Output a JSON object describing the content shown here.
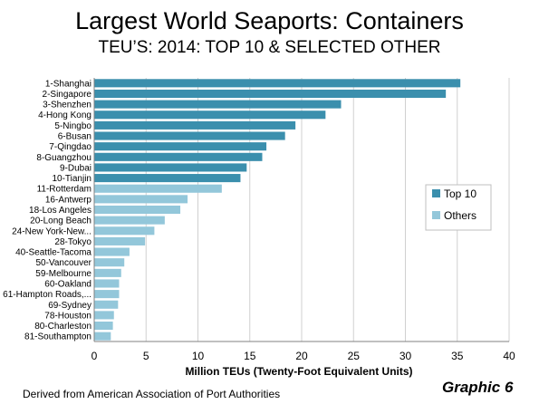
{
  "title": "Largest World Seaports: Containers",
  "subtitle": "TEU’S: 2014: TOP 10 & SELECTED OTHER",
  "footer": {
    "source": "Derived from American Association of Port Authorities",
    "graphic_label": "Graphic 6"
  },
  "colors": {
    "top10": "#3b8fad",
    "others": "#93c7da",
    "grid": "#d0d0d0",
    "axis": "#808080"
  },
  "chart_data": {
    "type": "bar",
    "orientation": "horizontal",
    "title": "Largest World Seaports: Containers",
    "subtitle": "TEU’S: 2014: TOP 10 & SELECTED OTHER",
    "xlabel": "Million TEUs (Twenty-Foot Equivalent Units)",
    "ylabel": "",
    "xlim": [
      0,
      40
    ],
    "xticks": [
      "0",
      "5",
      "10",
      "15",
      "20",
      "25",
      "30",
      "35",
      "40"
    ],
    "grid": true,
    "legend_position": "right",
    "legend": [
      {
        "name": "Top 10",
        "color": "#3b8fad"
      },
      {
        "name": "Others",
        "color": "#93c7da"
      }
    ],
    "categories": [
      "1-Shanghai",
      "2-Singapore",
      "3-Shenzhen",
      "4-Hong Kong",
      "5-Ningbo",
      "6-Busan",
      "7-Qingdao",
      "8-Guangzhou",
      "9-Dubai",
      "10-Tianjin",
      "11-Rotterdam",
      "16-Antwerp",
      "18-Los Angeles",
      "20-Long Beach",
      "24-New York-New...",
      "28-Tokyo",
      "40-Seattle-Tacoma",
      "50-Vancouver",
      "59-Melbourne",
      "60-Oakland",
      "61-Hampton Roads,...",
      "69-Sydney",
      "78-Houston",
      "80-Charleston",
      "81-Southampton"
    ],
    "values": [
      35.3,
      33.9,
      23.8,
      22.3,
      19.4,
      18.4,
      16.6,
      16.2,
      14.7,
      14.1,
      12.3,
      9.0,
      8.3,
      6.8,
      5.8,
      4.9,
      3.4,
      2.9,
      2.6,
      2.4,
      2.4,
      2.3,
      1.9,
      1.8,
      1.6
    ],
    "group": [
      "Top 10",
      "Top 10",
      "Top 10",
      "Top 10",
      "Top 10",
      "Top 10",
      "Top 10",
      "Top 10",
      "Top 10",
      "Top 10",
      "Others",
      "Others",
      "Others",
      "Others",
      "Others",
      "Others",
      "Others",
      "Others",
      "Others",
      "Others",
      "Others",
      "Others",
      "Others",
      "Others",
      "Others"
    ]
  }
}
